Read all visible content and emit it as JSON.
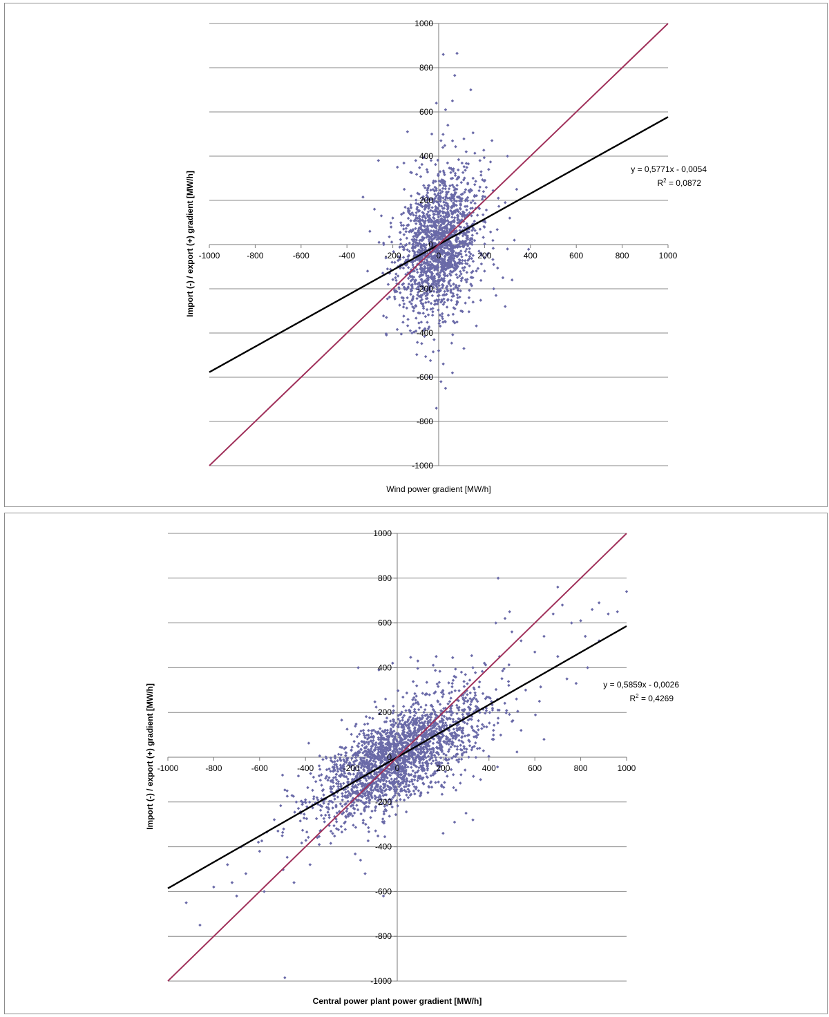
{
  "chart_data": [
    {
      "type": "scatter",
      "title": "",
      "xlabel": "Wind power gradient [MW/h]",
      "ylabel": "Import (-) / export (+) gradient [MW/h]",
      "xlim": [
        -1000,
        1000
      ],
      "ylim": [
        -1000,
        1000
      ],
      "x_ticks": [
        "-1000",
        "-800",
        "-600",
        "-400",
        "-200",
        "0",
        "200",
        "400",
        "600",
        "800",
        "1000"
      ],
      "y_ticks": [
        "1000",
        "800",
        "600",
        "400",
        "200",
        "0",
        "-200",
        "-400",
        "-600",
        "-800",
        "-1000"
      ],
      "grid": "horizontal",
      "legend": "none",
      "series": [
        {
          "kind": "scatter",
          "color": "#6a6aa8",
          "points": [
            [
              20,
              860
            ],
            [
              80,
              865
            ],
            [
              70,
              765
            ],
            [
              140,
              700
            ],
            [
              60,
              650
            ],
            [
              -10,
              640
            ],
            [
              30,
              610
            ],
            [
              40,
              540
            ],
            [
              -30,
              500
            ],
            [
              10,
              470
            ],
            [
              120,
              420
            ],
            [
              -100,
              380
            ],
            [
              -180,
              350
            ],
            [
              180,
              380
            ],
            [
              300,
              400
            ],
            [
              -330,
              215
            ],
            [
              -280,
              160
            ],
            [
              -250,
              130
            ],
            [
              -200,
              120
            ],
            [
              -300,
              60
            ],
            [
              -260,
              10
            ],
            [
              -310,
              -120
            ],
            [
              -220,
              -180
            ],
            [
              260,
              210
            ],
            [
              290,
              190
            ],
            [
              340,
              250
            ],
            [
              310,
              120
            ],
            [
              330,
              20
            ],
            [
              300,
              -20
            ],
            [
              240,
              -90
            ],
            [
              280,
              -150
            ],
            [
              320,
              -160
            ],
            [
              240,
              -200
            ],
            [
              250,
              -230
            ],
            [
              290,
              -280
            ],
            [
              180,
              260
            ],
            [
              150,
              300
            ],
            [
              -150,
              250
            ],
            [
              -120,
              220
            ],
            [
              -60,
              -380
            ],
            [
              -20,
              -430
            ],
            [
              0,
              -480
            ],
            [
              20,
              -540
            ],
            [
              60,
              -580
            ],
            [
              -40,
              -600
            ],
            [
              10,
              -620
            ],
            [
              30,
              -650
            ],
            [
              -10,
              -740
            ],
            [
              110,
              -470
            ],
            [
              -110,
              -300
            ],
            [
              80,
              -350
            ],
            [
              150,
              -260
            ],
            [
              -160,
              -240
            ],
            [
              200,
              -120
            ],
            [
              -230,
              -60
            ]
          ],
          "cloud": {
            "center": [
              0,
              0
            ],
            "sd": [
              85,
              165
            ],
            "rho": 0.3,
            "count": 1700
          }
        },
        {
          "kind": "line",
          "name": "",
          "color": "#000000",
          "x": [
            -1000,
            1000
          ],
          "y": [
            -577.1054,
            577.0946
          ]
        },
        {
          "kind": "line",
          "name": "",
          "color": "#a0305a",
          "x": [
            -1000,
            1000
          ],
          "y": [
            -1000,
            1000
          ]
        }
      ],
      "annotation": {
        "equation": "y = 0,5771x - 0,0054",
        "r2_prefix": "R",
        "r2_sup": "2",
        "r2_value": " = 0,0872"
      }
    },
    {
      "type": "scatter",
      "title": "",
      "xlabel": "Central power plant power gradient [MW/h]",
      "ylabel": "Import (-) / export (+) gradient [MW/h]",
      "xlim": [
        -1000,
        1000
      ],
      "ylim": [
        -1000,
        1000
      ],
      "x_ticks": [
        "-1000",
        "-800",
        "-600",
        "-400",
        "-200",
        "0",
        "200",
        "400",
        "600",
        "800",
        "1000"
      ],
      "y_ticks": [
        "1000",
        "800",
        "600",
        "400",
        "200",
        "0",
        "-200",
        "-400",
        "-600",
        "-800",
        "-1000"
      ],
      "grid": "horizontal",
      "legend": "none",
      "series": [
        {
          "kind": "scatter",
          "color": "#6a6aa8",
          "points": [
            [
              -920,
              -650
            ],
            [
              -860,
              -750
            ],
            [
              -800,
              -580
            ],
            [
              -740,
              -480
            ],
            [
              -720,
              -560
            ],
            [
              -700,
              -620
            ],
            [
              -680,
              -400
            ],
            [
              -660,
              -520
            ],
            [
              -600,
              -420
            ],
            [
              -580,
              -600
            ],
            [
              -520,
              -330
            ],
            [
              -500,
              -80
            ],
            [
              -480,
              -150
            ],
            [
              -450,
              -560
            ],
            [
              -440,
              -200
            ],
            [
              -420,
              -250
            ],
            [
              -380,
              -480
            ],
            [
              -340,
              -390
            ],
            [
              -490,
              -985
            ],
            [
              -160,
              -460
            ],
            [
              -60,
              -620
            ],
            [
              -140,
              -520
            ],
            [
              -170,
              400
            ],
            [
              -80,
              390
            ],
            [
              -20,
              420
            ],
            [
              90,
              430
            ],
            [
              170,
              450
            ],
            [
              240,
              330
            ],
            [
              280,
              380
            ],
            [
              330,
              400
            ],
            [
              380,
              420
            ],
            [
              430,
              600
            ],
            [
              470,
              620
            ],
            [
              490,
              650
            ],
            [
              500,
              560
            ],
            [
              540,
              520
            ],
            [
              600,
              470
            ],
            [
              640,
              540
            ],
            [
              700,
              760
            ],
            [
              680,
              640
            ],
            [
              720,
              680
            ],
            [
              760,
              600
            ],
            [
              800,
              610
            ],
            [
              820,
              540
            ],
            [
              850,
              660
            ],
            [
              880,
              690
            ],
            [
              920,
              640
            ],
            [
              960,
              650
            ],
            [
              1000,
              740
            ],
            [
              440,
              800
            ],
            [
              640,
              80
            ],
            [
              620,
              250
            ],
            [
              700,
              450
            ],
            [
              740,
              350
            ],
            [
              780,
              330
            ],
            [
              830,
              400
            ],
            [
              880,
              520
            ],
            [
              540,
              120
            ],
            [
              520,
              260
            ],
            [
              360,
              200
            ],
            [
              300,
              -250
            ],
            [
              250,
              -290
            ],
            [
              200,
              -340
            ],
            [
              330,
              -280
            ],
            [
              420,
              80
            ],
            [
              560,
              300
            ]
          ],
          "cloud": {
            "center": [
              0,
              0
            ],
            "sd": [
              185,
              140
            ],
            "rho": 0.68,
            "count": 2200
          }
        },
        {
          "kind": "line",
          "name": "",
          "color": "#000000",
          "x": [
            -1000,
            1000
          ],
          "y": [
            -585.9026,
            585.8974
          ]
        },
        {
          "kind": "line",
          "name": "",
          "color": "#a0305a",
          "x": [
            -1000,
            1000
          ],
          "y": [
            -1000,
            1000
          ]
        }
      ],
      "annotation": {
        "equation": "y = 0,5859x - 0,0026",
        "r2_prefix": "R",
        "r2_sup": "2",
        "r2_value": " = 0,4269"
      }
    }
  ]
}
